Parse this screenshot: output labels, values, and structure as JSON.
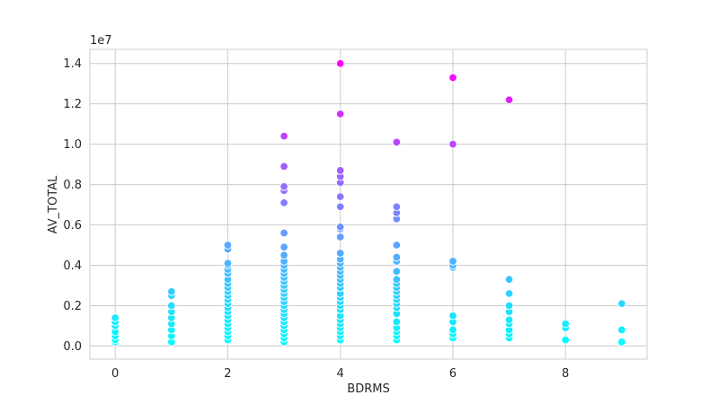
{
  "chart_data": {
    "type": "scatter",
    "title": "",
    "xlabel": "BDRMS",
    "ylabel": "AV_TOTAL",
    "y_offset_label": "1e7",
    "xlim": [
      -0.45,
      9.45
    ],
    "ylim": [
      -0.065,
      1.47
    ],
    "x_ticks": [
      0,
      2,
      4,
      6,
      8
    ],
    "x_tick_labels": [
      "0",
      "2",
      "4",
      "6",
      "8"
    ],
    "y_ticks": [
      0.0,
      0.2,
      0.4,
      0.6,
      0.8,
      1.0,
      1.2,
      1.4
    ],
    "y_tick_labels": [
      "0.0",
      "0.2",
      "0.4",
      "0.6",
      "0.8",
      "1.0",
      "1.2",
      "1.4"
    ],
    "grid": true,
    "colormap": "cool",
    "color_range": [
      0.0,
      1.4
    ],
    "colormap_start": "#00ffff",
    "colormap_end": "#ff00ff",
    "points": [
      [
        0,
        0.02
      ],
      [
        0,
        0.03
      ],
      [
        0,
        0.05
      ],
      [
        0,
        0.07
      ],
      [
        0,
        0.1
      ],
      [
        0,
        0.12
      ],
      [
        0,
        0.14
      ],
      [
        1,
        0.02
      ],
      [
        1,
        0.05
      ],
      [
        1,
        0.08
      ],
      [
        1,
        0.11
      ],
      [
        1,
        0.14
      ],
      [
        1,
        0.17
      ],
      [
        1,
        0.2
      ],
      [
        1,
        0.25
      ],
      [
        1,
        0.27
      ],
      [
        2,
        0.03
      ],
      [
        2,
        0.05
      ],
      [
        2,
        0.07
      ],
      [
        2,
        0.09
      ],
      [
        2,
        0.11
      ],
      [
        2,
        0.13
      ],
      [
        2,
        0.15
      ],
      [
        2,
        0.17
      ],
      [
        2,
        0.19
      ],
      [
        2,
        0.21
      ],
      [
        2,
        0.23
      ],
      [
        2,
        0.25
      ],
      [
        2,
        0.27
      ],
      [
        2,
        0.29
      ],
      [
        2,
        0.31
      ],
      [
        2,
        0.33
      ],
      [
        2,
        0.36
      ],
      [
        2,
        0.38
      ],
      [
        2,
        0.4
      ],
      [
        2,
        0.41
      ],
      [
        2,
        0.48
      ],
      [
        2,
        0.5
      ],
      [
        3,
        0.02
      ],
      [
        3,
        0.04
      ],
      [
        3,
        0.06
      ],
      [
        3,
        0.08
      ],
      [
        3,
        0.1
      ],
      [
        3,
        0.12
      ],
      [
        3,
        0.14
      ],
      [
        3,
        0.16
      ],
      [
        3,
        0.18
      ],
      [
        3,
        0.2
      ],
      [
        3,
        0.22
      ],
      [
        3,
        0.24
      ],
      [
        3,
        0.26
      ],
      [
        3,
        0.28
      ],
      [
        3,
        0.3
      ],
      [
        3,
        0.32
      ],
      [
        3,
        0.34
      ],
      [
        3,
        0.36
      ],
      [
        3,
        0.38
      ],
      [
        3,
        0.4
      ],
      [
        3,
        0.42
      ],
      [
        3,
        0.45
      ],
      [
        3,
        0.49
      ],
      [
        3,
        0.56
      ],
      [
        3,
        0.71
      ],
      [
        3,
        0.77
      ],
      [
        3,
        0.79
      ],
      [
        3,
        0.89
      ],
      [
        3,
        1.04
      ],
      [
        4,
        0.03
      ],
      [
        4,
        0.05
      ],
      [
        4,
        0.07
      ],
      [
        4,
        0.09
      ],
      [
        4,
        0.11
      ],
      [
        4,
        0.13
      ],
      [
        4,
        0.15
      ],
      [
        4,
        0.18
      ],
      [
        4,
        0.2
      ],
      [
        4,
        0.22
      ],
      [
        4,
        0.24
      ],
      [
        4,
        0.26
      ],
      [
        4,
        0.29
      ],
      [
        4,
        0.31
      ],
      [
        4,
        0.33
      ],
      [
        4,
        0.35
      ],
      [
        4,
        0.37
      ],
      [
        4,
        0.39
      ],
      [
        4,
        0.41
      ],
      [
        4,
        0.43
      ],
      [
        4,
        0.46
      ],
      [
        4,
        0.54
      ],
      [
        4,
        0.58
      ],
      [
        4,
        0.59
      ],
      [
        4,
        0.69
      ],
      [
        4,
        0.74
      ],
      [
        4,
        0.81
      ],
      [
        4,
        0.84
      ],
      [
        4,
        0.87
      ],
      [
        4,
        1.15
      ],
      [
        4,
        1.4
      ],
      [
        5,
        0.03
      ],
      [
        5,
        0.05
      ],
      [
        5,
        0.07
      ],
      [
        5,
        0.09
      ],
      [
        5,
        0.12
      ],
      [
        5,
        0.16
      ],
      [
        5,
        0.19
      ],
      [
        5,
        0.21
      ],
      [
        5,
        0.23
      ],
      [
        5,
        0.25
      ],
      [
        5,
        0.27
      ],
      [
        5,
        0.29
      ],
      [
        5,
        0.31
      ],
      [
        5,
        0.33
      ],
      [
        5,
        0.37
      ],
      [
        5,
        0.42
      ],
      [
        5,
        0.44
      ],
      [
        5,
        0.5
      ],
      [
        5,
        0.63
      ],
      [
        5,
        0.66
      ],
      [
        5,
        0.69
      ],
      [
        5,
        1.01
      ],
      [
        6,
        0.04
      ],
      [
        6,
        0.06
      ],
      [
        6,
        0.08
      ],
      [
        6,
        0.12
      ],
      [
        6,
        0.15
      ],
      [
        6,
        0.39
      ],
      [
        6,
        0.4
      ],
      [
        6,
        0.42
      ],
      [
        6,
        1.0
      ],
      [
        6,
        1.33
      ],
      [
        7,
        0.04
      ],
      [
        7,
        0.06
      ],
      [
        7,
        0.08
      ],
      [
        7,
        0.11
      ],
      [
        7,
        0.13
      ],
      [
        7,
        0.17
      ],
      [
        7,
        0.2
      ],
      [
        7,
        0.26
      ],
      [
        7,
        0.33
      ],
      [
        7,
        1.22
      ],
      [
        8,
        0.03
      ],
      [
        8,
        0.09
      ],
      [
        8,
        0.11
      ],
      [
        9,
        0.02
      ],
      [
        9,
        0.08
      ],
      [
        9,
        0.21
      ]
    ]
  }
}
